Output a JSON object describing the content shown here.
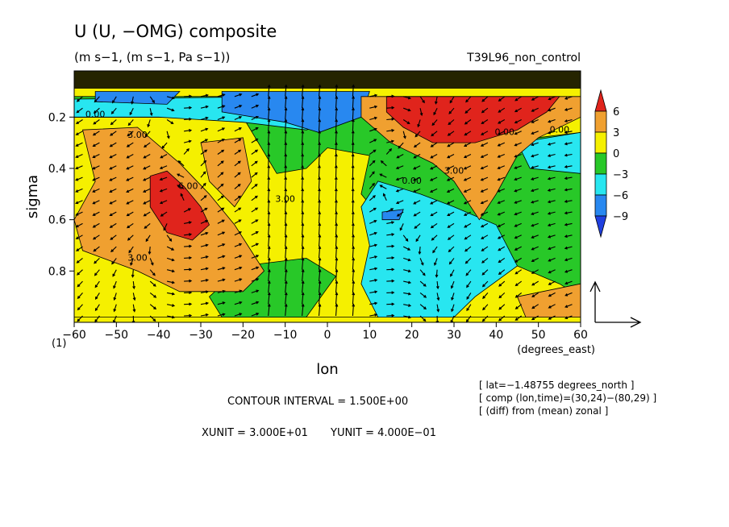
{
  "title": "U (U, −OMG) composite",
  "subtitle": "(m s−1, (m s−1, Pa s−1))",
  "run_name": "T39L96_non_control",
  "chart_data": {
    "type": "heatmap",
    "xlabel": "lon",
    "ylabel": "sigma",
    "x_unit_label": "(degrees_east)",
    "corner_label": "(1)",
    "xlim": [
      -60,
      60
    ],
    "ylim": [
      1.0,
      0.02
    ],
    "x_ticks": [
      -60,
      -50,
      -40,
      -30,
      -20,
      -10,
      0,
      10,
      20,
      30,
      40,
      50,
      60
    ],
    "x_tick_labels": [
      "−60",
      "−50",
      "−40",
      "−30",
      "−20",
      "−10",
      "0",
      "10",
      "20",
      "30",
      "40",
      "50",
      "60"
    ],
    "y_ticks": [
      0.2,
      0.4,
      0.6,
      0.8
    ],
    "y_tick_labels": [
      "0.2",
      "0.4",
      "0.6",
      "0.8"
    ],
    "colorbar": {
      "levels": [
        6,
        3,
        0,
        -3,
        -6,
        -9
      ],
      "level_labels": [
        "6",
        "3",
        "0",
        "−3",
        "−6",
        "−9"
      ],
      "colors": [
        "#e0241c",
        "#f0a030",
        "#f5f000",
        "#28c828",
        "#28e6f0",
        "#2888f0",
        "#2040e0"
      ]
    },
    "contour_labels": [
      "0.00",
      "3.00",
      "3.00",
      "6.00",
      "3.00",
      "0.00",
      "3.00",
      "0.00",
      "0.00"
    ],
    "regions": [
      {
        "fill": "#f5f000",
        "level": 0,
        "poly": [
          [
            -60,
            0.98
          ],
          [
            60,
            0.98
          ],
          [
            60,
            0.2
          ],
          [
            -60,
            0.2
          ]
        ]
      },
      {
        "fill": "#28c828",
        "level": -3,
        "poly": [
          [
            -60,
            0.2
          ],
          [
            -20,
            0.2
          ],
          [
            -12,
            0.42
          ],
          [
            -5,
            0.4
          ],
          [
            0,
            0.32
          ],
          [
            10,
            0.35
          ],
          [
            8,
            0.5
          ],
          [
            14,
            0.62
          ],
          [
            25,
            0.8
          ],
          [
            45,
            0.78
          ],
          [
            55,
            0.85
          ],
          [
            60,
            0.9
          ],
          [
            60,
            0.26
          ],
          [
            40,
            0.3
          ],
          [
            28,
            0.35
          ],
          [
            10,
            0.2
          ],
          [
            5,
            0.12
          ],
          [
            -60,
            0.12
          ]
        ]
      },
      {
        "fill": "#28c828",
        "level": -3,
        "poly": [
          [
            -20,
            0.78
          ],
          [
            -5,
            0.75
          ],
          [
            2,
            0.82
          ],
          [
            -5,
            0.98
          ],
          [
            -25,
            0.98
          ],
          [
            -28,
            0.9
          ]
        ]
      },
      {
        "fill": "#28e6f0",
        "level": -6,
        "poly": [
          [
            12,
            0.45
          ],
          [
            22,
            0.5
          ],
          [
            30,
            0.55
          ],
          [
            40,
            0.62
          ],
          [
            45,
            0.78
          ],
          [
            35,
            0.9
          ],
          [
            30,
            0.98
          ],
          [
            12,
            0.98
          ],
          [
            8,
            0.85
          ],
          [
            10,
            0.7
          ],
          [
            8,
            0.55
          ]
        ]
      },
      {
        "fill": "#28e6f0",
        "level": -6,
        "poly": [
          [
            45,
            0.3
          ],
          [
            60,
            0.26
          ],
          [
            60,
            0.42
          ],
          [
            48,
            0.4
          ]
        ]
      },
      {
        "fill": "#28e6f0",
        "level": -6,
        "poly": [
          [
            -60,
            0.13
          ],
          [
            -10,
            0.12
          ],
          [
            8,
            0.12
          ],
          [
            5,
            0.2
          ],
          [
            -5,
            0.25
          ],
          [
            -20,
            0.22
          ],
          [
            -40,
            0.2
          ],
          [
            -60,
            0.2
          ]
        ]
      },
      {
        "fill": "#2888f0",
        "level": -9,
        "poly": [
          [
            -25,
            0.1
          ],
          [
            10,
            0.1
          ],
          [
            8,
            0.2
          ],
          [
            -2,
            0.26
          ],
          [
            -10,
            0.22
          ],
          [
            -25,
            0.18
          ]
        ]
      },
      {
        "fill": "#2888f0",
        "level": -9,
        "poly": [
          [
            -55,
            0.1
          ],
          [
            -35,
            0.1
          ],
          [
            -38,
            0.15
          ],
          [
            -55,
            0.14
          ]
        ]
      },
      {
        "fill": "#2888f0",
        "level": -9,
        "poly": [
          [
            13,
            0.57
          ],
          [
            18,
            0.56
          ],
          [
            17,
            0.6
          ],
          [
            13,
            0.6
          ]
        ]
      },
      {
        "fill": "#f0a030",
        "level": 3,
        "poly": [
          [
            -58,
            0.25
          ],
          [
            -45,
            0.24
          ],
          [
            -35,
            0.38
          ],
          [
            -28,
            0.5
          ],
          [
            -22,
            0.62
          ],
          [
            -15,
            0.8
          ],
          [
            -20,
            0.88
          ],
          [
            -35,
            0.88
          ],
          [
            -45,
            0.8
          ],
          [
            -58,
            0.72
          ],
          [
            -60,
            0.6
          ],
          [
            -55,
            0.45
          ]
        ]
      },
      {
        "fill": "#f0a030",
        "level": 3,
        "poly": [
          [
            -30,
            0.3
          ],
          [
            -20,
            0.28
          ],
          [
            -18,
            0.45
          ],
          [
            -22,
            0.55
          ],
          [
            -28,
            0.45
          ]
        ]
      },
      {
        "fill": "#f0a030",
        "level": 3,
        "poly": [
          [
            8,
            0.12
          ],
          [
            60,
            0.12
          ],
          [
            60,
            0.2
          ],
          [
            50,
            0.28
          ],
          [
            45,
            0.35
          ],
          [
            40,
            0.5
          ],
          [
            36,
            0.6
          ],
          [
            30,
            0.45
          ],
          [
            25,
            0.38
          ],
          [
            15,
            0.3
          ],
          [
            8,
            0.2
          ]
        ]
      },
      {
        "fill": "#f0a030",
        "level": 3,
        "poly": [
          [
            45,
            0.9
          ],
          [
            60,
            0.85
          ],
          [
            60,
            0.98
          ],
          [
            47,
            0.98
          ]
        ]
      },
      {
        "fill": "#e0241c",
        "level": 6,
        "poly": [
          [
            14,
            0.12
          ],
          [
            55,
            0.12
          ],
          [
            52,
            0.18
          ],
          [
            45,
            0.25
          ],
          [
            35,
            0.3
          ],
          [
            25,
            0.3
          ],
          [
            18,
            0.24
          ],
          [
            14,
            0.18
          ]
        ]
      },
      {
        "fill": "#e0241c",
        "level": 6,
        "poly": [
          [
            -42,
            0.43
          ],
          [
            -38,
            0.41
          ],
          [
            -34,
            0.47
          ],
          [
            -30,
            0.55
          ],
          [
            -28,
            0.62
          ],
          [
            -32,
            0.68
          ],
          [
            -38,
            0.65
          ],
          [
            -42,
            0.55
          ]
        ]
      }
    ]
  },
  "vector_reference": {
    "xunit": "XUNIT = 3.000E+01",
    "yunit": "YUNIT = 4.000E−01"
  },
  "contour_interval": "CONTOUR INTERVAL = 1.500E+00",
  "info_lines": [
    "[ lat=−1.48755 degrees_north ]",
    "[ comp (lon,time)=(30,24)−(80,29) ]",
    "[ (diff) from (mean) zonal ]"
  ]
}
